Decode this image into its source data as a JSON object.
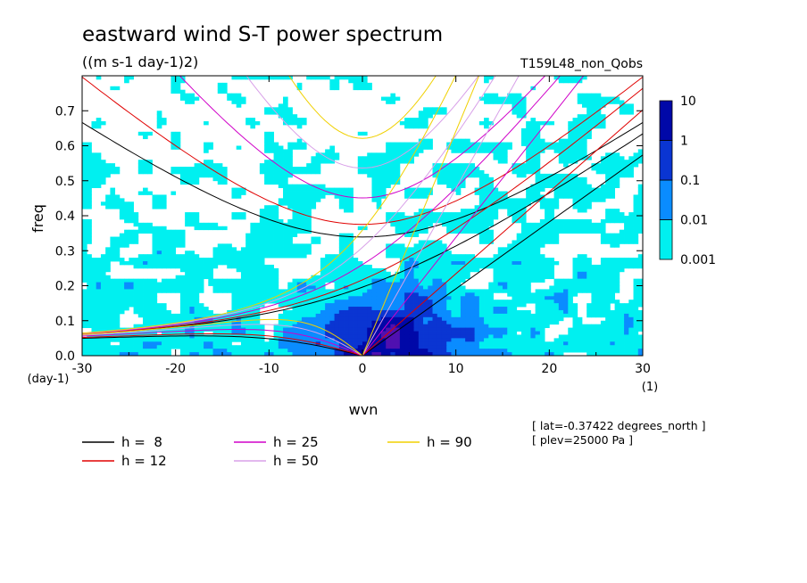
{
  "title": "eastward wind S-T power spectrum",
  "units": "((m s-1 day-1)2)",
  "run_label": "T159L48_non_Qobs",
  "meta": {
    "lat": "[ lat=-0.37422 degrees_north ]",
    "plev": "[ plev=25000 Pa ]"
  },
  "chart_data": {
    "type": "heatmap",
    "title": "eastward wind S-T power spectrum",
    "xlabel": "wvn",
    "ylabel": "freq",
    "x_unit": "(1)",
    "y_unit": "(day-1)",
    "xlim": [
      -30,
      30
    ],
    "ylim": [
      0,
      0.8
    ],
    "x_ticks": [
      -30,
      -20,
      -10,
      0,
      10,
      20,
      30
    ],
    "y_ticks": [
      0.0,
      0.1,
      0.2,
      0.3,
      0.4,
      0.5,
      0.6,
      0.7
    ],
    "x_tick_labels": [
      "-30",
      "-20",
      "-10",
      "0",
      "10",
      "20",
      "30"
    ],
    "y_tick_labels": [
      "0.0",
      "0.1",
      "0.2",
      "0.3",
      "0.4",
      "0.5",
      "0.6",
      "0.7"
    ],
    "colorbar": {
      "levels": [
        "0.001",
        "0.01",
        "0.1",
        "1",
        "10"
      ],
      "colors": [
        "#00f0f0",
        "#0a8cff",
        "#0a35d2",
        "#0008a8",
        "#5010b0"
      ],
      "scale": "log"
    },
    "dispersion_curves": [
      {
        "label": "h =  8",
        "h": 8,
        "color": "#000000"
      },
      {
        "label": "h = 12",
        "h": 12,
        "color": "#e00000"
      },
      {
        "label": "h = 25",
        "h": 25,
        "color": "#d000c8"
      },
      {
        "label": "h = 50",
        "h": 50,
        "color": "#d8a0e8"
      },
      {
        "label": "h = 90",
        "h": 90,
        "color": "#f0d000"
      }
    ],
    "grid": false,
    "legend_position": "bottom-left"
  }
}
